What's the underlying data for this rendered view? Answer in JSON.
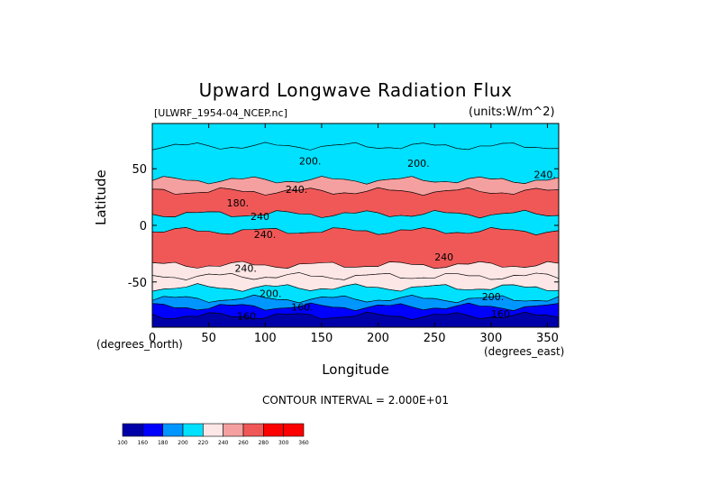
{
  "chart_data": {
    "type": "heatmap",
    "title": "Upward Longwave Radiation Flux",
    "subtitle_left": "[ULWRF_1954-04_NCEP.nc]",
    "subtitle_right": "(units:W/m^2)",
    "xlabel": "Longitude",
    "ylabel": "Latitude",
    "x_unit_label": "(degrees_east)",
    "y_unit_label": "(degrees_north)",
    "xlim": [
      0,
      360
    ],
    "ylim": [
      -90,
      90
    ],
    "x_ticks": [
      0,
      50,
      100,
      150,
      200,
      250,
      300,
      350
    ],
    "y_ticks": [
      50,
      0,
      -50
    ],
    "contour_interval_text": "CONTOUR INTERVAL = 2.000E+01",
    "contour_labels": [
      {
        "text": "200.",
        "x": 130,
        "y": 57
      },
      {
        "text": "200.",
        "x": 226,
        "y": 55
      },
      {
        "text": "240.",
        "x": 118,
        "y": 32
      },
      {
        "text": "240.",
        "x": 338,
        "y": 45
      },
      {
        "text": "180.",
        "x": 66,
        "y": 20
      },
      {
        "text": "240",
        "x": 87,
        "y": 8
      },
      {
        "text": "240.",
        "x": 90,
        "y": -8
      },
      {
        "text": "240",
        "x": 250,
        "y": -28
      },
      {
        "text": "240.",
        "x": 73,
        "y": -38
      },
      {
        "text": "200.",
        "x": 95,
        "y": -60
      },
      {
        "text": "200.",
        "x": 292,
        "y": -63
      },
      {
        "text": "160.",
        "x": 123,
        "y": -72
      },
      {
        "text": "160",
        "x": 300,
        "y": -78
      },
      {
        "text": "160",
        "x": 75,
        "y": -80
      }
    ],
    "colorbar": {
      "levels": [
        100,
        160,
        180,
        200,
        220,
        240,
        260,
        280,
        300,
        360
      ],
      "level_labels": [
        "100",
        "160",
        "180",
        "200",
        "220",
        "240",
        "260",
        "280",
        "300",
        "360"
      ],
      "colors": [
        "#0000a8",
        "#0000ff",
        "#0096ff",
        "#00e0ff",
        "#fde6e6",
        "#f4a0a0",
        "#f05858",
        "#ff0000",
        "#ff0000"
      ]
    },
    "field_structure": [
      {
        "lat_from": 90,
        "lat_to": 70,
        "value": 200
      },
      {
        "lat_from": 70,
        "lat_to": 40,
        "value": 210
      },
      {
        "lat_from": 40,
        "lat_to": 30,
        "value": 240
      },
      {
        "lat_from": 30,
        "lat_to": 10,
        "value": 270
      },
      {
        "lat_from": 10,
        "lat_to": -5,
        "value": 215
      },
      {
        "lat_from": -5,
        "lat_to": -35,
        "value": 260
      },
      {
        "lat_from": -35,
        "lat_to": -45,
        "value": 235
      },
      {
        "lat_from": -45,
        "lat_to": -55,
        "value": 225
      },
      {
        "lat_from": -55,
        "lat_to": -65,
        "value": 205
      },
      {
        "lat_from": -65,
        "lat_to": -72,
        "value": 190
      },
      {
        "lat_from": -72,
        "lat_to": -80,
        "value": 170
      },
      {
        "lat_from": -80,
        "lat_to": -90,
        "value": 150
      }
    ]
  }
}
